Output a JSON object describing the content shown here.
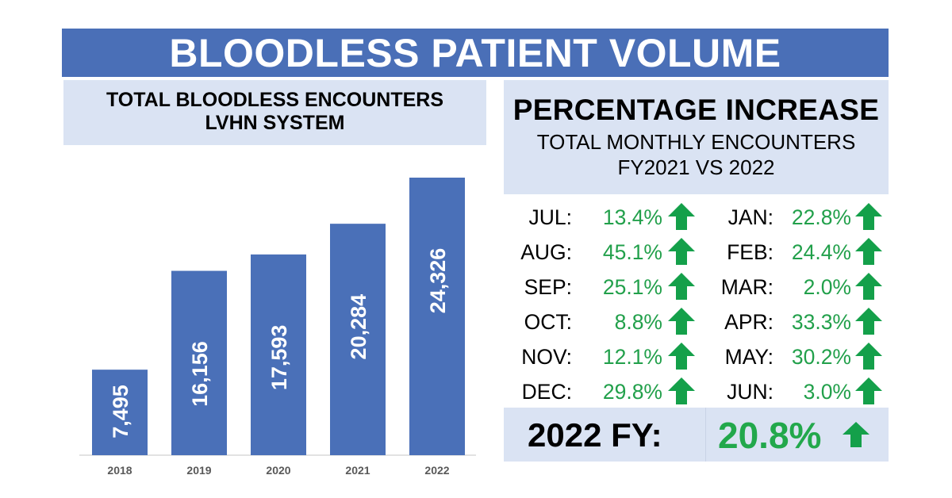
{
  "banner": {
    "title": "BLOODLESS PATIENT VOLUME"
  },
  "left_panel": {
    "title_line1": "TOTAL BLOODLESS ENCOUNTERS",
    "title_line2": "LVHN SYSTEM"
  },
  "right_panel": {
    "title": "PERCENTAGE INCREASE",
    "subtitle_line1": "TOTAL MONTHLY ENCOUNTERS",
    "subtitle_line2": "FY2021 VS 2022",
    "left_column": [
      {
        "month": "JUL:",
        "value": "13.4%",
        "icon": "up-arrow-icon"
      },
      {
        "month": "AUG:",
        "value": "45.1%",
        "icon": "up-arrow-icon"
      },
      {
        "month": "SEP:",
        "value": "25.1%",
        "icon": "up-arrow-icon"
      },
      {
        "month": "OCT:",
        "value": "8.8%",
        "icon": "up-arrow-icon"
      },
      {
        "month": "NOV:",
        "value": "12.1%",
        "icon": "up-arrow-icon"
      },
      {
        "month": "DEC:",
        "value": "29.8%",
        "icon": "up-arrow-icon"
      }
    ],
    "right_column": [
      {
        "month": "JAN:",
        "value": "22.8%",
        "icon": "up-arrow-icon"
      },
      {
        "month": "FEB:",
        "value": "24.4%",
        "icon": "up-arrow-icon"
      },
      {
        "month": "MAR:",
        "value": "2.0%",
        "icon": "up-arrow-icon"
      },
      {
        "month": "APR:",
        "value": "33.3%",
        "icon": "up-arrow-icon"
      },
      {
        "month": "MAY:",
        "value": "30.2%",
        "icon": "up-arrow-icon"
      },
      {
        "month": "JUN:",
        "value": "3.0%",
        "icon": "up-arrow-icon"
      }
    ],
    "fy_summary": {
      "label": "2022 FY:",
      "value": "20.8%",
      "icon": "up-arrow-icon"
    }
  },
  "colors": {
    "banner_blue": "#4a6fb7",
    "bar_blue": "#4a70b8",
    "panel_light_blue": "#dae3f3",
    "increase_green": "#22a04b",
    "arrow_green": "#14a04a"
  },
  "chart_data": {
    "type": "bar",
    "title": "TOTAL BLOODLESS ENCOUNTERS LVHN SYSTEM",
    "categories": [
      "2018",
      "2019",
      "2020",
      "2021",
      "2022"
    ],
    "values": [
      7495,
      16156,
      17593,
      20284,
      24326
    ],
    "value_labels": [
      "7,495",
      "16,156",
      "17,593",
      "20,284",
      "24,326"
    ],
    "xlabel": "",
    "ylabel": "",
    "ylim": [
      0,
      24326
    ],
    "grid": false,
    "legend": "none",
    "data_label_orientation": "vertical",
    "data_label_position": "inside"
  }
}
